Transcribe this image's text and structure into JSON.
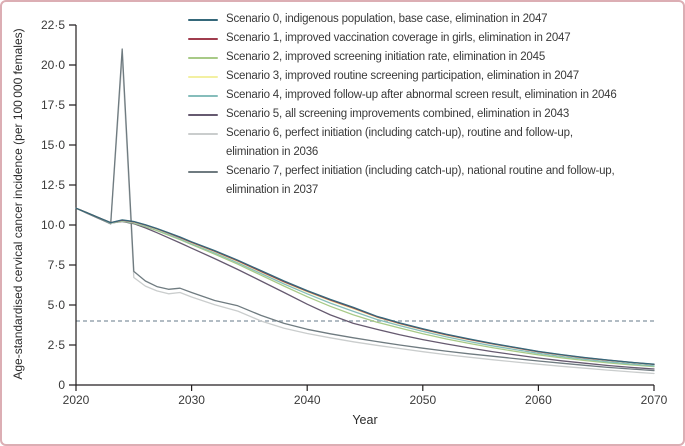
{
  "figure": {
    "border_color": "#dcaeb4",
    "background": "#ffffff"
  },
  "chart_data": {
    "type": "line",
    "title": "",
    "xlabel": "Year",
    "ylabel": "Age-standardised cervical cancer incidence (per 100 000 females)",
    "xlim": [
      2020,
      2070
    ],
    "ylim": [
      0,
      22.5
    ],
    "grid": false,
    "legend_position": "top-right",
    "axis_color": "#231f20",
    "x_ticks": [
      2020,
      2030,
      2040,
      2050,
      2060,
      2070
    ],
    "y_ticks": [
      {
        "value": 0,
        "label": "0"
      },
      {
        "value": 2.5,
        "label": "2·5"
      },
      {
        "value": 5,
        "label": "5·0"
      },
      {
        "value": 7.5,
        "label": "7·5"
      },
      {
        "value": 10,
        "label": "10·0"
      },
      {
        "value": 12.5,
        "label": "12·5"
      },
      {
        "value": 15,
        "label": "15·0"
      },
      {
        "value": 17.5,
        "label": "17·5"
      },
      {
        "value": 20,
        "label": "20·0"
      },
      {
        "value": 22.5,
        "label": "22·5"
      }
    ],
    "threshold_line": {
      "value": 4,
      "style": "dashed",
      "color": "#a7b3bc",
      "meaning": "elimination threshold"
    },
    "x": [
      2020,
      2021,
      2022,
      2023,
      2024,
      2025,
      2026,
      2027,
      2028,
      2029,
      2030,
      2032,
      2034,
      2036,
      2038,
      2040,
      2042,
      2044,
      2046,
      2048,
      2050,
      2052,
      2054,
      2056,
      2058,
      2060,
      2062,
      2064,
      2066,
      2068,
      2070
    ],
    "series": [
      {
        "name": "Scenario 0",
        "color": "#35687a",
        "legend_lines": [
          "Scenario 0, indigenous population, base case, elimination in 2047"
        ],
        "values": [
          11.05,
          10.75,
          10.45,
          10.15,
          10.32,
          10.22,
          10.02,
          9.78,
          9.52,
          9.25,
          8.95,
          8.4,
          7.8,
          7.15,
          6.5,
          5.9,
          5.35,
          4.85,
          4.3,
          3.88,
          3.52,
          3.18,
          2.88,
          2.6,
          2.35,
          2.1,
          1.9,
          1.72,
          1.56,
          1.42,
          1.3
        ]
      },
      {
        "name": "Scenario 1",
        "color": "#a03c4e",
        "legend_lines": [
          "Scenario 1, improved vaccination coverage in girls, elimination in 2047"
        ],
        "values": [
          11.05,
          10.75,
          10.45,
          10.15,
          10.3,
          10.2,
          10.0,
          9.76,
          9.5,
          9.22,
          8.92,
          8.36,
          7.76,
          7.1,
          6.45,
          5.86,
          5.31,
          4.81,
          4.27,
          3.85,
          3.49,
          3.15,
          2.85,
          2.58,
          2.33,
          2.08,
          1.88,
          1.7,
          1.55,
          1.41,
          1.29
        ]
      },
      {
        "name": "Scenario 2",
        "color": "#a8ca87",
        "legend_lines": [
          "Scenario 2, improved screening initiation rate, elimination in 2045"
        ],
        "values": [
          11.05,
          10.75,
          10.45,
          10.12,
          10.24,
          10.12,
          9.9,
          9.65,
          9.37,
          9.08,
          8.78,
          8.18,
          7.55,
          6.86,
          6.18,
          5.52,
          4.92,
          4.38,
          3.93,
          3.56,
          3.2,
          2.88,
          2.6,
          2.34,
          2.1,
          1.89,
          1.7,
          1.53,
          1.38,
          1.26,
          1.15
        ]
      },
      {
        "name": "Scenario 3",
        "color": "#f3f0a2",
        "legend_lines": [
          "Scenario 3, improved routine screening participation, elimination in 2047"
        ],
        "values": [
          11.05,
          10.75,
          10.45,
          10.15,
          10.29,
          10.18,
          9.98,
          9.74,
          9.48,
          9.2,
          8.89,
          8.33,
          7.72,
          7.06,
          6.42,
          5.82,
          5.27,
          4.77,
          4.24,
          3.82,
          3.46,
          3.12,
          2.83,
          2.56,
          2.31,
          2.07,
          1.87,
          1.69,
          1.54,
          1.4,
          1.28
        ]
      },
      {
        "name": "Scenario 4",
        "color": "#86bdbb",
        "legend_lines": [
          "Scenario 4, improved follow-up after abnormal screen result, elimination in 2046"
        ],
        "values": [
          11.05,
          10.75,
          10.45,
          10.12,
          10.26,
          10.15,
          9.94,
          9.7,
          9.43,
          9.14,
          8.84,
          8.26,
          7.64,
          6.97,
          6.31,
          5.7,
          5.12,
          4.6,
          4.1,
          3.71,
          3.35,
          3.01,
          2.72,
          2.45,
          2.21,
          1.98,
          1.78,
          1.61,
          1.45,
          1.32,
          1.2
        ]
      },
      {
        "name": "Scenario 5",
        "color": "#665a70",
        "legend_lines": [
          "Scenario 5, all screening improvements combined, elimination in 2043"
        ],
        "values": [
          11.05,
          10.75,
          10.45,
          10.12,
          10.22,
          10.08,
          9.82,
          9.52,
          9.2,
          8.88,
          8.55,
          7.9,
          7.22,
          6.5,
          5.78,
          5.05,
          4.38,
          3.85,
          3.48,
          3.14,
          2.84,
          2.57,
          2.32,
          2.09,
          1.88,
          1.69,
          1.51,
          1.36,
          1.22,
          1.1,
          1.0
        ]
      },
      {
        "name": "Scenario 6",
        "color": "#cacdcd",
        "legend_lines": [
          "Scenario 6, perfect initiation (including catch-up), routine and follow-up,",
          "elimination in 2036"
        ],
        "values": [
          11.05,
          10.72,
          10.4,
          10.05,
          20.5,
          6.72,
          6.18,
          5.88,
          5.7,
          5.78,
          5.5,
          5.02,
          4.62,
          4.0,
          3.55,
          3.22,
          2.95,
          2.7,
          2.48,
          2.28,
          2.08,
          1.9,
          1.74,
          1.58,
          1.44,
          1.3,
          1.17,
          1.05,
          0.93,
          0.82,
          0.72
        ]
      },
      {
        "name": "Scenario 7",
        "color": "#6f7b80",
        "legend_lines": [
          "Scenario 7, perfect initiation (including catch-up), national routine and follow-up,",
          "elimination in 2037"
        ],
        "values": [
          11.05,
          10.72,
          10.4,
          10.08,
          21.0,
          7.1,
          6.5,
          6.15,
          5.98,
          6.05,
          5.78,
          5.28,
          4.95,
          4.35,
          3.85,
          3.48,
          3.2,
          2.95,
          2.72,
          2.5,
          2.3,
          2.12,
          1.95,
          1.8,
          1.65,
          1.5,
          1.36,
          1.23,
          1.1,
          1.0,
          0.9
        ]
      }
    ]
  }
}
